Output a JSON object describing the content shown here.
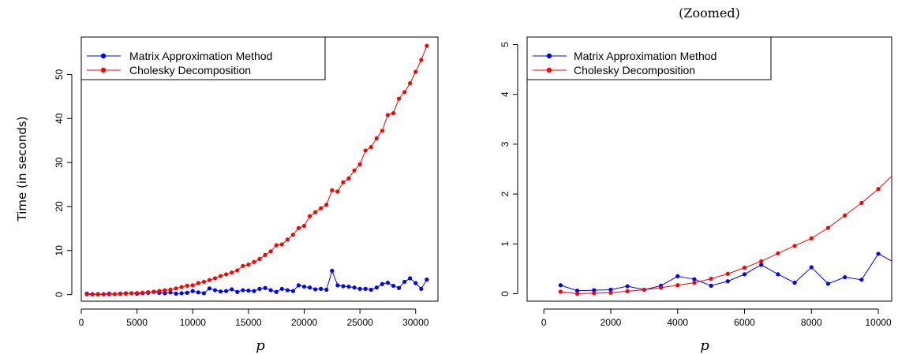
{
  "chart_data": [
    {
      "type": "line",
      "title": "",
      "xlabel": "p",
      "ylabel": "Time (in seconds)",
      "xlim": [
        0,
        32000
      ],
      "ylim": [
        -1.5,
        58.5
      ],
      "xticks": [
        0,
        5000,
        10000,
        15000,
        20000,
        25000,
        30000
      ],
      "xtick_labels": [
        "0",
        "5000",
        "10000",
        "15000",
        "20000",
        "25000",
        "30000"
      ],
      "yticks": [
        0,
        10,
        20,
        30,
        40,
        50
      ],
      "ytick_labels": [
        "0",
        "10",
        "20",
        "30",
        "40",
        "50"
      ],
      "grid": false,
      "legend_position": "top-left",
      "series": [
        {
          "name": "Matrix Approximation Method",
          "color": "#0000ff",
          "x": [
            500,
            1000,
            1500,
            2000,
            2500,
            3000,
            3500,
            4000,
            4500,
            5000,
            5500,
            6000,
            6500,
            7000,
            7500,
            8000,
            8500,
            9000,
            9500,
            10000,
            10500,
            11000,
            11500,
            12000,
            12500,
            13000,
            13500,
            14000,
            14500,
            15000,
            15500,
            16000,
            16500,
            17000,
            17500,
            18000,
            18500,
            19000,
            19500,
            20000,
            20500,
            21000,
            21500,
            22000,
            22500,
            23000,
            23500,
            24000,
            24500,
            25000,
            25500,
            26000,
            26500,
            27000,
            27500,
            28000,
            28500,
            29000,
            29500,
            30000,
            30500,
            31000
          ],
          "y": [
            0.2,
            0.1,
            0.1,
            0.1,
            0.2,
            0.1,
            0.2,
            0.3,
            0.3,
            0.2,
            0.3,
            0.4,
            0.6,
            0.4,
            0.3,
            0.5,
            0.2,
            0.3,
            0.4,
            0.8,
            0.5,
            0.3,
            1.4,
            1.0,
            0.7,
            0.8,
            1.2,
            0.6,
            1.0,
            0.9,
            0.8,
            1.3,
            1.5,
            1.0,
            0.6,
            1.3,
            1.0,
            0.8,
            2.1,
            1.8,
            1.6,
            1.2,
            1.3,
            1.1,
            5.4,
            2.1,
            1.9,
            1.8,
            1.6,
            1.3,
            1.3,
            1.1,
            1.6,
            2.4,
            2.7,
            2.0,
            1.5,
            2.9,
            3.7,
            2.6,
            1.3,
            3.4
          ]
        },
        {
          "name": "Cholesky Decomposition",
          "color": "#ff0000",
          "x": [
            500,
            1000,
            1500,
            2000,
            2500,
            3000,
            3500,
            4000,
            4500,
            5000,
            5500,
            6000,
            6500,
            7000,
            7500,
            8000,
            8500,
            9000,
            9500,
            10000,
            10500,
            11000,
            11500,
            12000,
            12500,
            13000,
            13500,
            14000,
            14500,
            15000,
            15500,
            16000,
            16500,
            17000,
            17500,
            18000,
            18500,
            19000,
            19500,
            20000,
            20500,
            21000,
            21500,
            22000,
            22500,
            23000,
            23500,
            24000,
            24500,
            25000,
            25500,
            26000,
            26500,
            27000,
            27500,
            28000,
            28500,
            29000,
            29500,
            30000,
            30500,
            31000
          ],
          "y": [
            0.05,
            0.01,
            0.02,
            0.04,
            0.07,
            0.1,
            0.15,
            0.2,
            0.3,
            0.35,
            0.42,
            0.54,
            0.65,
            0.82,
            0.97,
            1.1,
            1.4,
            1.7,
            2.0,
            2.1,
            2.6,
            2.9,
            3.3,
            3.7,
            4.2,
            4.6,
            5.0,
            5.5,
            6.5,
            6.8,
            7.4,
            8.1,
            9.0,
            9.8,
            11.2,
            11.4,
            12.5,
            13.6,
            15.1,
            15.6,
            17.8,
            18.7,
            19.6,
            20.4,
            23.7,
            23.4,
            25.5,
            26.4,
            28.2,
            29.6,
            32.7,
            33.5,
            35.5,
            37.2,
            40.8,
            41.2,
            44.5,
            46.0,
            48.0,
            50.6,
            53.3,
            56.5
          ]
        }
      ]
    },
    {
      "type": "line",
      "title": "(Zoomed)",
      "xlabel": "p",
      "ylabel": "",
      "xlim": [
        -500,
        10400
      ],
      "ylim": [
        -0.15,
        5.15
      ],
      "xticks": [
        0,
        2000,
        4000,
        6000,
        8000,
        10000
      ],
      "xtick_labels": [
        "0",
        "2000",
        "4000",
        "6000",
        "8000",
        "10000"
      ],
      "yticks": [
        0,
        1,
        2,
        3,
        4,
        5
      ],
      "ytick_labels": [
        "0",
        "1",
        "2",
        "3",
        "4",
        "5"
      ],
      "grid": false,
      "legend_position": "top-left",
      "series": [
        {
          "name": "Matrix Approximation Method",
          "color": "#0000ff",
          "x": [
            500,
            1000,
            1500,
            2000,
            2500,
            3000,
            3500,
            4000,
            4500,
            5000,
            5500,
            6000,
            6500,
            7000,
            7500,
            8000,
            8500,
            9000,
            9500,
            10000,
            10500
          ],
          "y": [
            0.17,
            0.06,
            0.07,
            0.08,
            0.15,
            0.08,
            0.16,
            0.35,
            0.29,
            0.16,
            0.25,
            0.39,
            0.58,
            0.39,
            0.22,
            0.53,
            0.2,
            0.33,
            0.28,
            0.8,
            0.62
          ]
        },
        {
          "name": "Cholesky Decomposition",
          "color": "#ff0000",
          "x": [
            500,
            1000,
            1500,
            2000,
            2500,
            3000,
            3500,
            4000,
            4500,
            5000,
            5500,
            6000,
            6500,
            7000,
            7500,
            8000,
            8500,
            9000,
            9500,
            10000,
            10500
          ],
          "y": [
            0.04,
            0.0,
            0.01,
            0.02,
            0.05,
            0.08,
            0.12,
            0.17,
            0.22,
            0.3,
            0.4,
            0.52,
            0.65,
            0.81,
            0.96,
            1.11,
            1.32,
            1.57,
            1.82,
            2.1,
            2.42
          ]
        }
      ]
    }
  ]
}
